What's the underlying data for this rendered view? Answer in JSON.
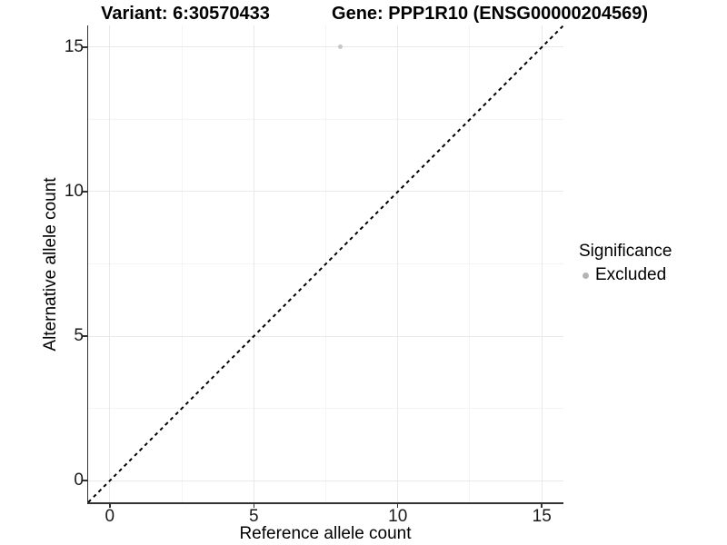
{
  "titles": {
    "variant": "Variant: 6:30570433",
    "gene": "Gene: PPP1R10 (ENSG00000204569)"
  },
  "chart_data": {
    "type": "scatter",
    "title_left": "Variant: 6:30570433",
    "title_right": "Gene: PPP1R10 (ENSG00000204569)",
    "xlabel": "Reference allele count",
    "ylabel": "Alternative allele count",
    "xlim": [
      -0.75,
      15.75
    ],
    "ylim": [
      -0.75,
      15.75
    ],
    "xticks": [
      0,
      5,
      10,
      15
    ],
    "yticks": [
      0,
      5,
      10,
      15
    ],
    "minor_xticks": [
      2.5,
      7.5,
      12.5
    ],
    "minor_yticks": [
      2.5,
      7.5,
      12.5
    ],
    "grid": "major and minor gridlines, white panel",
    "points": [
      {
        "x": 8,
        "y": 15,
        "series": "Excluded"
      }
    ],
    "identity_line": {
      "style": "dashed",
      "from": [
        -0.75,
        -0.75
      ],
      "to": [
        15.75,
        15.75
      ]
    },
    "legend": {
      "title": "Significance",
      "position": "right",
      "entries": [
        {
          "label": "Excluded",
          "color": "#b5b5b5"
        }
      ]
    }
  },
  "colors": {
    "background": "#ffffff",
    "title_text": "#000000",
    "axis_line": "#333333",
    "tick_text": "#1a1a1a",
    "grid_major": "#e9e9e9",
    "grid_minor": "#f4f4f4",
    "point": "#c6c6c6",
    "legend_dot": "#b5b5b5",
    "identity_line": "#000000"
  }
}
